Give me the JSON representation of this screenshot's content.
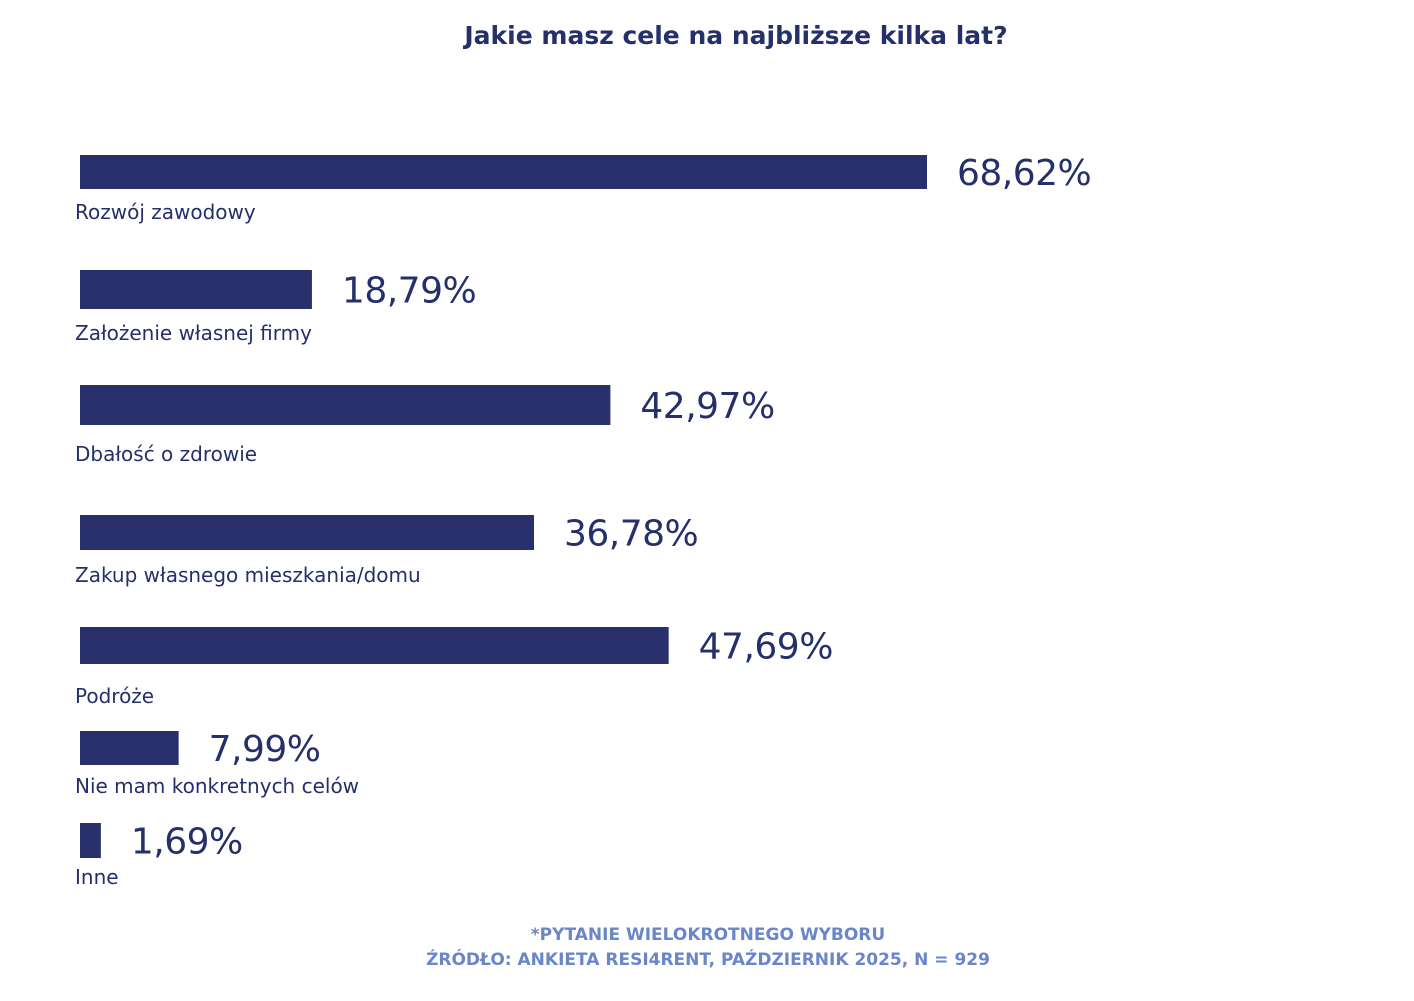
{
  "chart_data": {
    "type": "bar",
    "orientation": "horizontal",
    "title": "Jakie masz cele na najbliższe kilka lat?",
    "categories": [
      "Rozwój zawodowy",
      "Założenie własnej firmy",
      "Dbałość o zdrowie",
      "Zakup własnego mieszkania/domu",
      "Podróże",
      "Nie mam konkretnych celów",
      "Inne"
    ],
    "values": [
      68.62,
      18.79,
      42.97,
      36.78,
      47.69,
      7.99,
      1.69
    ],
    "value_labels": [
      "68,62%",
      "18,79%",
      "42,97%",
      "36,78%",
      "47,69%",
      "7,99%",
      "1,69%"
    ],
    "unit": "%",
    "xlim": [
      0,
      100
    ],
    "xlabel": "",
    "ylabel": "",
    "grid": false,
    "legend": "none",
    "bar_color": "#29306c"
  },
  "footnotes": {
    "line1": "*PYTANIE WIELOKROTNEGO WYBORU",
    "line2": "ŹRÓDŁO: ANKIETA RESI4RENT, PAŹDZIERNIK 2025, N = 929"
  },
  "colors": {
    "text": "#25306b",
    "footnote": "#6a86c8"
  }
}
